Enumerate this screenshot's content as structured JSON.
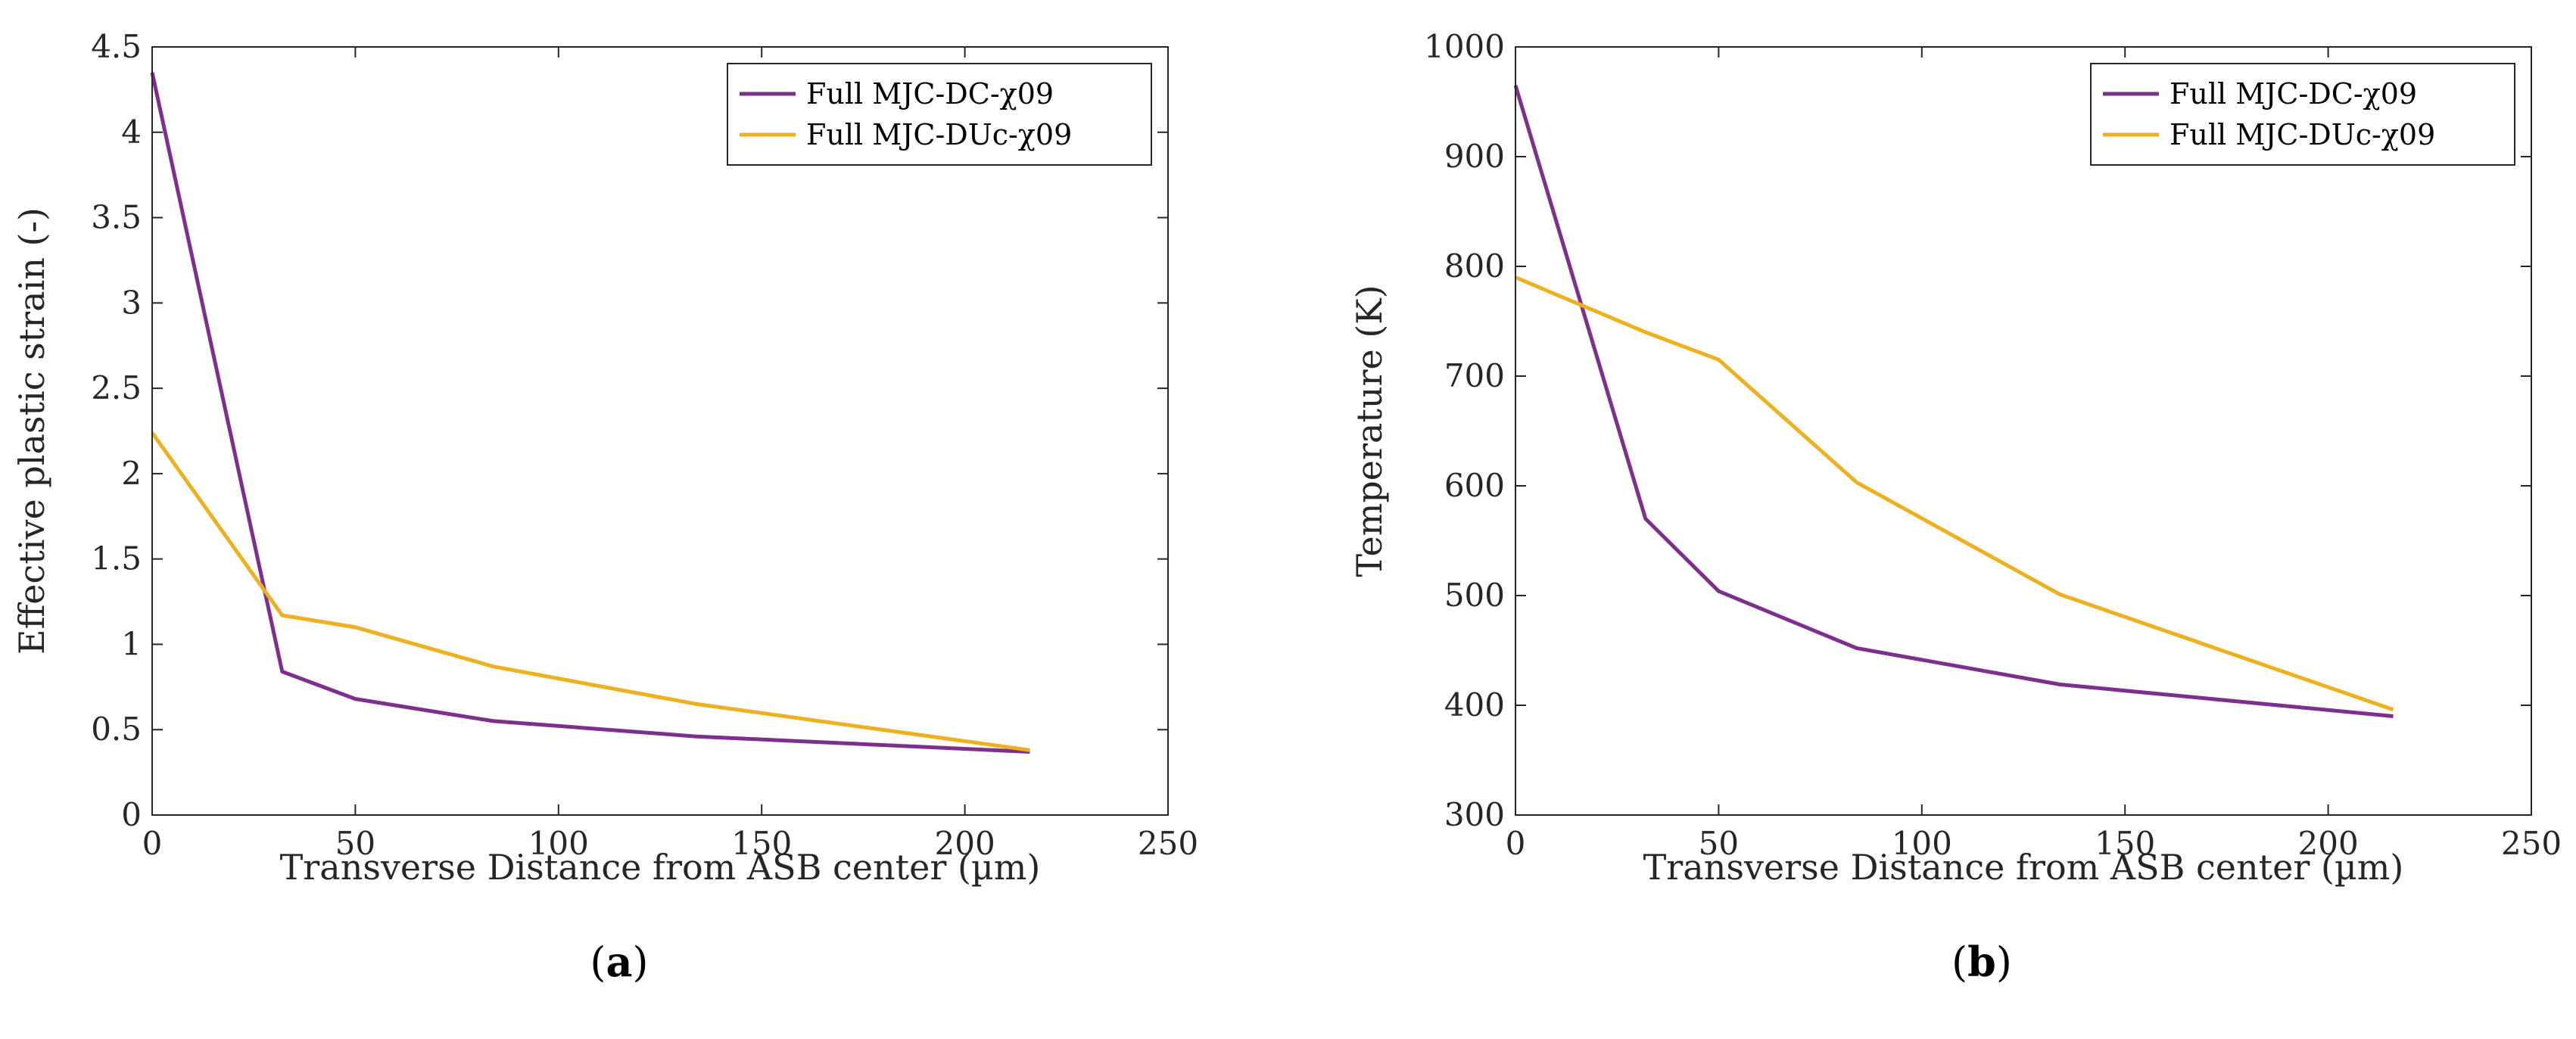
{
  "chart_data": [
    {
      "type": "line",
      "panel_label": "(a)",
      "xlabel": "Transverse Distance from ASB center (µm)",
      "ylabel": "Effective plastic strain (-)",
      "xlim": [
        0,
        250
      ],
      "ylim": [
        0,
        4.5
      ],
      "xticks": [
        "0",
        "50",
        "100",
        "150",
        "200",
        "250"
      ],
      "yticks": [
        "0",
        "0.5",
        "1",
        "1.5",
        "2",
        "2.5",
        "3",
        "3.5",
        "4",
        "4.5"
      ],
      "grid": false,
      "legend": "top-right",
      "series": [
        {
          "name": "Full MJC-DC-χ09",
          "color": "#7E2F8E",
          "x": [
            0,
            32,
            50,
            84,
            134,
            216
          ],
          "y": [
            4.35,
            0.84,
            0.68,
            0.55,
            0.46,
            0.37
          ]
        },
        {
          "name": "Full MJC-DUc-χ09",
          "color": "#EDB120",
          "x": [
            0,
            32,
            50,
            84,
            134,
            216
          ],
          "y": [
            2.24,
            1.17,
            1.1,
            0.87,
            0.65,
            0.38
          ]
        }
      ]
    },
    {
      "type": "line",
      "panel_label": "(b)",
      "xlabel": "Transverse Distance from ASB center (µm)",
      "ylabel": "Temperature (K)",
      "xlim": [
        0,
        250
      ],
      "ylim": [
        300,
        1000
      ],
      "xticks": [
        "0",
        "50",
        "100",
        "150",
        "200",
        "250"
      ],
      "yticks": [
        "300",
        "400",
        "500",
        "600",
        "700",
        "800",
        "900",
        "1000"
      ],
      "grid": false,
      "legend": "top-right",
      "series": [
        {
          "name": "Full MJC-DC-χ09",
          "color": "#7E2F8E",
          "x": [
            0,
            32,
            50,
            84,
            134,
            216
          ],
          "y": [
            965,
            570,
            504,
            452,
            419,
            390
          ]
        },
        {
          "name": "Full MJC-DUc-χ09",
          "color": "#EDB120",
          "x": [
            0,
            32,
            50,
            84,
            134,
            216
          ],
          "y": [
            790,
            740,
            715,
            603,
            501,
            396
          ]
        }
      ]
    }
  ]
}
